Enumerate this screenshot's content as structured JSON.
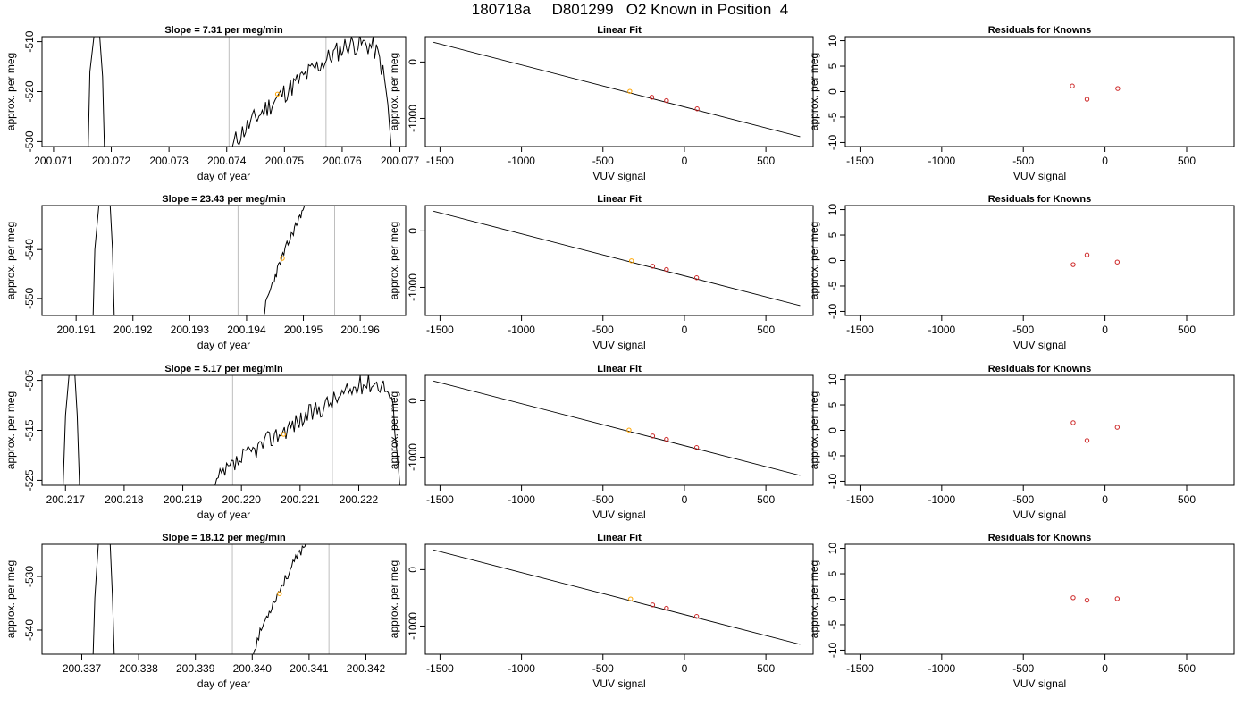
{
  "figure": {
    "title": "180718a     D801299   O2 Known in Position  4",
    "colors": {
      "trace": "#000000",
      "marker_measured": "#FFA500",
      "marker_known": "#CD2626",
      "guide_line": "#BEBEBE"
    }
  },
  "chart_data": [
    {
      "type": "line",
      "row": 1,
      "col": 1,
      "title": "Slope =  7.31  per meg/min",
      "xlabel": "day of year",
      "ylabel": "approx. per meg",
      "xlim": [
        200.0708,
        200.0771
      ],
      "ylim": [
        -531,
        -509
      ],
      "xticks": [
        "200.071",
        "200.072",
        "200.073",
        "200.074",
        "200.075",
        "200.076",
        "200.077"
      ],
      "yticks": [
        "-530",
        "-520",
        "-510"
      ],
      "guide_lines_x": [
        200.07404,
        200.07572
      ],
      "series": [
        {
          "x": [
            200.0716,
            200.07163,
            200.0717,
            200.0718,
            200.07185,
            200.07188
          ],
          "y": [
            -531,
            -516,
            -509,
            -509,
            -517,
            -531
          ]
        }
      ],
      "noisy_trace": {
        "x_start": 200.0741,
        "x_end": 200.07685,
        "y_start": -531,
        "y_peak": -510.5,
        "peak_x": 200.0761,
        "y_end": -531,
        "noise": 2.2,
        "seed": 11
      },
      "points": [
        {
          "x": 200.07488,
          "y": -520.5
        }
      ]
    },
    {
      "type": "scatter",
      "row": 1,
      "col": 2,
      "title": "Linear Fit",
      "xlabel": "VUV signal",
      "ylabel": "approx. per meg",
      "xlim": [
        -1590,
        790
      ],
      "ylim": [
        -1500,
        450
      ],
      "xticks": [
        "-1500",
        "-1000",
        "-500",
        "0",
        "500"
      ],
      "yticks": [
        "-1000",
        "0"
      ],
      "fit_line": {
        "x": [
          -1540,
          710
        ],
        "y": [
          350,
          -1325
        ]
      },
      "points_measured": [
        {
          "x": -335,
          "y": -520
        }
      ],
      "points_known": [
        {
          "x": -200,
          "y": -625
        },
        {
          "x": -110,
          "y": -685
        },
        {
          "x": 78,
          "y": -830
        }
      ]
    },
    {
      "type": "scatter",
      "row": 1,
      "col": 3,
      "title": "Residuals for Knowns",
      "xlabel": "VUV signal",
      "ylabel": "approx. per meg",
      "xlim": [
        -1590,
        790
      ],
      "ylim": [
        -10.8,
        10.8
      ],
      "xticks": [
        "-1500",
        "-1000",
        "-500",
        "0",
        "500"
      ],
      "yticks": [
        "-10",
        "-5",
        "0",
        "5",
        "10"
      ],
      "points_known": [
        {
          "x": -200,
          "y": 1.1
        },
        {
          "x": -110,
          "y": -1.5
        },
        {
          "x": 78,
          "y": 0.6
        }
      ]
    },
    {
      "type": "line",
      "row": 2,
      "col": 1,
      "title": "Slope =  23.43  per meg/min",
      "xlabel": "day of year",
      "ylabel": "approx. per meg",
      "xlim": [
        200.1904,
        200.1968
      ],
      "ylim": [
        -553.5,
        -531
      ],
      "xticks": [
        "200.191",
        "200.192",
        "200.193",
        "200.194",
        "200.195",
        "200.196"
      ],
      "yticks": [
        "-550",
        "-540"
      ],
      "guide_lines_x": [
        200.19385,
        200.19555
      ],
      "series": [
        {
          "x": [
            200.1913,
            200.19133,
            200.1914,
            200.1916,
            200.19164,
            200.19167
          ],
          "y": [
            -553.5,
            -540,
            -531,
            -531,
            -540,
            -553.5
          ]
        }
      ],
      "noisy_trace": {
        "x_start": 200.1943,
        "x_end": 200.19505,
        "y_start": -553.5,
        "y_peak": -530.5,
        "peak_x": 200.19505,
        "y_end": -531,
        "noise": 1.0,
        "seed": 23
      },
      "points": [
        {
          "x": 200.19463,
          "y": -541.8
        }
      ]
    },
    {
      "type": "scatter",
      "row": 2,
      "col": 2,
      "title": "Linear Fit",
      "xlabel": "VUV signal",
      "ylabel": "approx. per meg",
      "xlim": [
        -1590,
        790
      ],
      "ylim": [
        -1500,
        450
      ],
      "xticks": [
        "-1500",
        "-1000",
        "-500",
        "0",
        "500"
      ],
      "yticks": [
        "-1000",
        "0"
      ],
      "fit_line": {
        "x": [
          -1540,
          710
        ],
        "y": [
          350,
          -1325
        ]
      },
      "points_measured": [
        {
          "x": -325,
          "y": -530
        }
      ],
      "points_known": [
        {
          "x": -195,
          "y": -625
        },
        {
          "x": -110,
          "y": -685
        },
        {
          "x": 75,
          "y": -830
        }
      ]
    },
    {
      "type": "scatter",
      "row": 2,
      "col": 3,
      "title": "Residuals for Knowns",
      "xlabel": "VUV signal",
      "ylabel": "approx. per meg",
      "xlim": [
        -1590,
        790
      ],
      "ylim": [
        -10.8,
        10.8
      ],
      "xticks": [
        "-1500",
        "-1000",
        "-500",
        "0",
        "500"
      ],
      "yticks": [
        "-10",
        "-5",
        "0",
        "5",
        "10"
      ],
      "points_known": [
        {
          "x": -195,
          "y": -0.8
        },
        {
          "x": -110,
          "y": 1.1
        },
        {
          "x": 75,
          "y": -0.3
        }
      ]
    },
    {
      "type": "line",
      "row": 3,
      "col": 1,
      "title": "Slope =  5.17  per meg/min",
      "xlabel": "day of year",
      "ylabel": "approx. per meg",
      "xlim": [
        200.2166,
        200.2228
      ],
      "ylim": [
        -526,
        -504
      ],
      "xticks": [
        "200.217",
        "200.218",
        "200.219",
        "200.220",
        "200.221",
        "200.222"
      ],
      "yticks": [
        "-525",
        "-515",
        "-505"
      ],
      "guide_lines_x": [
        200.21985,
        200.22155
      ],
      "series": [
        {
          "x": [
            200.21696,
            200.217,
            200.21706,
            200.21716,
            200.2172,
            200.21724
          ],
          "y": [
            -526,
            -512,
            -504,
            -504,
            -512,
            -526
          ]
        }
      ],
      "noisy_trace": {
        "x_start": 200.21955,
        "x_end": 200.2227,
        "y_start": -526,
        "y_peak": -505.5,
        "peak_x": 200.2221,
        "y_end": -526,
        "noise": 2.0,
        "seed": 37
      },
      "points": [
        {
          "x": 200.22072,
          "y": -515.8
        }
      ]
    },
    {
      "type": "scatter",
      "row": 3,
      "col": 2,
      "title": "Linear Fit",
      "xlabel": "VUV signal",
      "ylabel": "approx. per meg",
      "xlim": [
        -1590,
        790
      ],
      "ylim": [
        -1500,
        450
      ],
      "xticks": [
        "-1500",
        "-1000",
        "-500",
        "0",
        "500"
      ],
      "yticks": [
        "-1000",
        "0"
      ],
      "fit_line": {
        "x": [
          -1540,
          710
        ],
        "y": [
          350,
          -1325
        ]
      },
      "points_measured": [
        {
          "x": -340,
          "y": -520
        }
      ],
      "points_known": [
        {
          "x": -195,
          "y": -625
        },
        {
          "x": -110,
          "y": -685
        },
        {
          "x": 75,
          "y": -830
        }
      ]
    },
    {
      "type": "scatter",
      "row": 3,
      "col": 3,
      "title": "Residuals for Knowns",
      "xlabel": "VUV signal",
      "ylabel": "approx. per meg",
      "xlim": [
        -1590,
        790
      ],
      "ylim": [
        -10.8,
        10.8
      ],
      "xticks": [
        "-1500",
        "-1000",
        "-500",
        "0",
        "500"
      ],
      "yticks": [
        "-10",
        "-5",
        "0",
        "5",
        "10"
      ],
      "points_known": [
        {
          "x": -195,
          "y": 1.5
        },
        {
          "x": -110,
          "y": -2.0
        },
        {
          "x": 75,
          "y": 0.6
        }
      ]
    },
    {
      "type": "line",
      "row": 4,
      "col": 1,
      "title": "Slope =  18.12  per meg/min",
      "xlabel": "day of year",
      "ylabel": "approx. per meg",
      "xlim": [
        200.3363,
        200.3427
      ],
      "ylim": [
        -544.5,
        -524
      ],
      "xticks": [
        "200.337",
        "200.338",
        "200.339",
        "200.340",
        "200.341",
        "200.342"
      ],
      "yticks": [
        "-540",
        "-530"
      ],
      "guide_lines_x": [
        200.33965,
        200.34135
      ],
      "series": [
        {
          "x": [
            200.3372,
            200.33723,
            200.33729,
            200.3375,
            200.33754,
            200.33757
          ],
          "y": [
            -544.5,
            -534,
            -524,
            -524,
            -534,
            -544.5
          ]
        }
      ],
      "noisy_trace": {
        "x_start": 200.34002,
        "x_end": 200.34095,
        "y_start": -544.5,
        "y_peak": -523.5,
        "peak_x": 200.34095,
        "y_end": -524,
        "noise": 0.9,
        "seed": 53
      },
      "points": [
        {
          "x": 200.34048,
          "y": -533.2
        }
      ]
    },
    {
      "type": "scatter",
      "row": 4,
      "col": 2,
      "title": "Linear Fit",
      "xlabel": "VUV signal",
      "ylabel": "approx. per meg",
      "xlim": [
        -1590,
        790
      ],
      "ylim": [
        -1500,
        450
      ],
      "xticks": [
        "-1500",
        "-1000",
        "-500",
        "0",
        "500"
      ],
      "yticks": [
        "-1000",
        "0"
      ],
      "fit_line": {
        "x": [
          -1540,
          710
        ],
        "y": [
          350,
          -1325
        ]
      },
      "points_measured": [
        {
          "x": -330,
          "y": -520
        }
      ],
      "points_known": [
        {
          "x": -195,
          "y": -625
        },
        {
          "x": -110,
          "y": -685
        },
        {
          "x": 75,
          "y": -830
        }
      ]
    },
    {
      "type": "scatter",
      "row": 4,
      "col": 3,
      "title": "Residuals for Knowns",
      "xlabel": "VUV signal",
      "ylabel": "approx. per meg",
      "xlim": [
        -1590,
        790
      ],
      "ylim": [
        -10.8,
        10.8
      ],
      "xticks": [
        "-1500",
        "-1000",
        "-500",
        "0",
        "500"
      ],
      "yticks": [
        "-10",
        "-5",
        "0",
        "5",
        "10"
      ],
      "points_known": [
        {
          "x": -195,
          "y": 0.3
        },
        {
          "x": -110,
          "y": -0.2
        },
        {
          "x": 75,
          "y": 0.1
        }
      ]
    }
  ]
}
